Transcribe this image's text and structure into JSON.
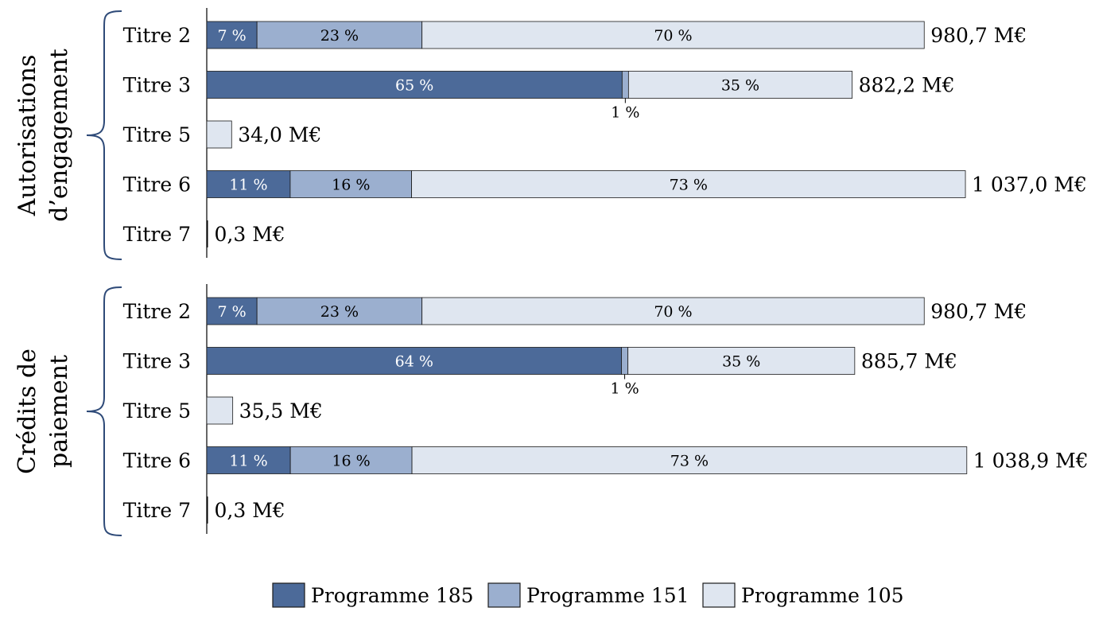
{
  "chart_data": {
    "type": "bar",
    "orientation": "horizontal",
    "stacked": true,
    "colors": {
      "Programme 185": "#4c6a99",
      "Programme 151": "#9bafcf",
      "Programme 105": "#dfe6f0"
    },
    "legend": {
      "position": "bottom-center",
      "items": [
        "Programme 185",
        "Programme 151",
        "Programme 105"
      ]
    },
    "groups": [
      {
        "title_lines": [
          "Autorisations",
          "d’engagement"
        ],
        "rows": [
          {
            "category": "Titre 2",
            "total": 980.7,
            "total_label": "980,7 M€",
            "segments": [
              {
                "series": "Programme 185",
                "value": 7,
                "label": "7 %"
              },
              {
                "series": "Programme 151",
                "value": 23,
                "label": "23 %"
              },
              {
                "series": "Programme 105",
                "value": 70,
                "label": "70 %"
              }
            ]
          },
          {
            "category": "Titre 3",
            "total": 882.2,
            "total_label": "882,2 M€",
            "segments": [
              {
                "series": "Programme 185",
                "value": 65,
                "label": "65 %"
              },
              {
                "series": "Programme 151",
                "value": 1,
                "label": "1 %",
                "label_position": "below"
              },
              {
                "series": "Programme 105",
                "value": 35,
                "label": "35 %"
              }
            ]
          },
          {
            "category": "Titre 5",
            "total": 34.0,
            "total_label": "34,0 M€",
            "segments": [
              {
                "series": "Programme 105",
                "value": 100,
                "label": ""
              }
            ]
          },
          {
            "category": "Titre 6",
            "total": 1037.0,
            "total_label": "1 037,0 M€",
            "segments": [
              {
                "series": "Programme 185",
                "value": 11,
                "label": "11 %"
              },
              {
                "series": "Programme 151",
                "value": 16,
                "label": "16 %"
              },
              {
                "series": "Programme 105",
                "value": 73,
                "label": "73 %"
              }
            ]
          },
          {
            "category": "Titre 7",
            "total": 0.3,
            "total_label": "0,3 M€",
            "segments": []
          }
        ]
      },
      {
        "title_lines": [
          "Crédits de",
          "paiement"
        ],
        "rows": [
          {
            "category": "Titre 2",
            "total": 980.7,
            "total_label": "980,7 M€",
            "segments": [
              {
                "series": "Programme 185",
                "value": 7,
                "label": "7 %"
              },
              {
                "series": "Programme 151",
                "value": 23,
                "label": "23 %"
              },
              {
                "series": "Programme 105",
                "value": 70,
                "label": "70 %"
              }
            ]
          },
          {
            "category": "Titre 3",
            "total": 885.7,
            "total_label": "885,7 M€",
            "segments": [
              {
                "series": "Programme 185",
                "value": 64,
                "label": "64 %"
              },
              {
                "series": "Programme 151",
                "value": 1,
                "label": "1 %",
                "label_position": "below"
              },
              {
                "series": "Programme 105",
                "value": 35,
                "label": "35 %"
              }
            ]
          },
          {
            "category": "Titre 5",
            "total": 35.5,
            "total_label": "35,5 M€",
            "segments": [
              {
                "series": "Programme 105",
                "value": 100,
                "label": ""
              }
            ]
          },
          {
            "category": "Titre 6",
            "total": 1038.9,
            "total_label": "1 038,9 M€",
            "segments": [
              {
                "series": "Programme 185",
                "value": 11,
                "label": "11 %"
              },
              {
                "series": "Programme 151",
                "value": 16,
                "label": "16 %"
              },
              {
                "series": "Programme 105",
                "value": 73,
                "label": "73 %"
              }
            ]
          },
          {
            "category": "Titre 7",
            "total": 0.3,
            "total_label": "0,3 M€",
            "segments": []
          }
        ]
      }
    ]
  }
}
